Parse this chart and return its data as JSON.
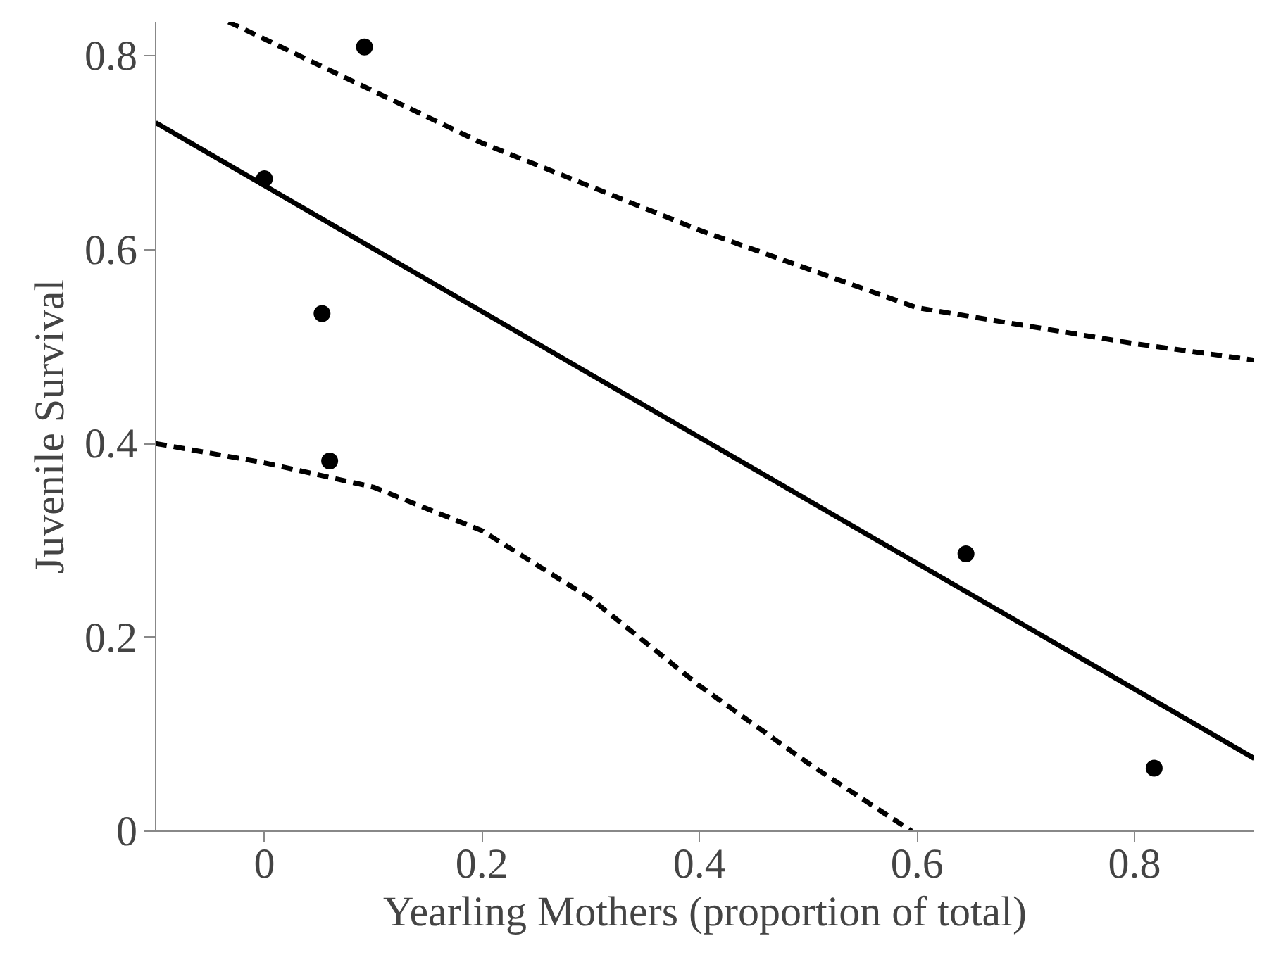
{
  "chart_data": {
    "type": "scatter",
    "xlabel": "Yearling Mothers (proportion of total)",
    "ylabel": "Juvenile Survival",
    "xlim": [
      -0.1,
      0.91
    ],
    "ylim": [
      0,
      0.835
    ],
    "xticks": [
      0,
      0.2,
      0.4,
      0.6,
      0.8
    ],
    "yticks": [
      0,
      0.2,
      0.4,
      0.6,
      0.8
    ],
    "grid": false,
    "marker": "circle",
    "series": [
      {
        "color": "#000000",
        "x": [
          0,
          0.053,
          0.06,
          0.092,
          0.645,
          0.818
        ],
        "values": [
          0.673,
          0.534,
          0.382,
          0.809,
          0.286,
          0.065
        ]
      },
      {
        "type": "line",
        "color": "#000000",
        "line_style": "solid",
        "marker": "none",
        "x": [
          -0.1,
          0.91
        ],
        "values": [
          0.731,
          0.075
        ]
      },
      {
        "type": "line",
        "color": "#000000",
        "line_style": "dashed",
        "marker": "none",
        "x": [
          -0.033,
          0.2,
          0.4,
          0.6,
          0.8,
          0.91
        ],
        "values": [
          0.835,
          0.71,
          0.62,
          0.54,
          0.503,
          0.486
        ]
      },
      {
        "type": "line",
        "color": "#000000",
        "line_style": "dashed",
        "marker": "none",
        "x": [
          -0.1,
          0,
          0.1,
          0.2,
          0.3,
          0.4,
          0.5,
          0.595
        ],
        "values": [
          0.4,
          0.38,
          0.355,
          0.31,
          0.24,
          0.15,
          0.07,
          0
        ]
      }
    ]
  }
}
